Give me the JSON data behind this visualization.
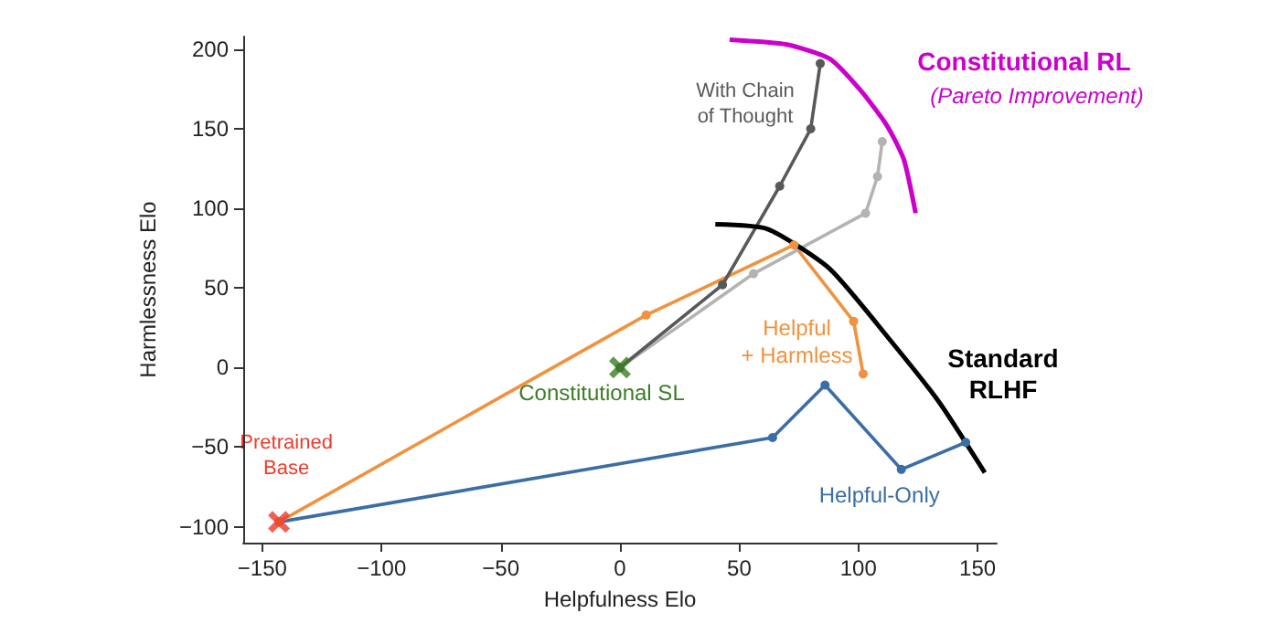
{
  "chart_data": {
    "type": "line",
    "xlabel": "Helpfulness Elo",
    "ylabel": "Harmlessness Elo",
    "xlim": [
      -158,
      158
    ],
    "ylim": [
      -110,
      208
    ],
    "xticks": [
      -150,
      -100,
      -50,
      0,
      50,
      100,
      150
    ],
    "yticks": [
      -100,
      -50,
      0,
      50,
      100,
      150,
      200
    ],
    "grid": false,
    "annotations": [
      "(Pareto Improvement)"
    ],
    "series": [
      {
        "name": "Helpful-Only",
        "color": "#3a6ea5",
        "marker": "circle",
        "x": [
          -143,
          64,
          86,
          118,
          145
        ],
        "values": [
          -97,
          -44,
          -11,
          -64,
          -47
        ]
      },
      {
        "name": "Helpful\n+ Harmless",
        "color": "#f0923e",
        "marker": "circle",
        "x": [
          -143,
          11,
          73,
          98,
          102
        ],
        "values": [
          -97,
          33,
          77,
          29,
          -4
        ]
      },
      {
        "color": "#b3b3b3",
        "marker": "circle",
        "x": [
          0,
          56,
          103,
          108,
          110
        ],
        "values": [
          0,
          59,
          97,
          120,
          142
        ]
      },
      {
        "name": "With Chain\nof Thought",
        "color": "#595959",
        "marker": "circle",
        "x": [
          0,
          43,
          67,
          80,
          84
        ],
        "values": [
          0,
          52,
          114,
          150,
          191
        ]
      },
      {
        "name": "Standard\nRLHF",
        "color": "#000000",
        "marker": "none",
        "x": [
          40,
          62,
          88,
          114,
          134,
          153
        ],
        "values": [
          90,
          87,
          62,
          16,
          -22,
          -66
        ]
      },
      {
        "name": "Constitutional RL",
        "color": "#cc00cc",
        "marker": "none",
        "x": [
          46,
          70,
          88,
          101,
          112,
          119,
          124
        ],
        "values": [
          206,
          203,
          194,
          174,
          152,
          131,
          97
        ]
      },
      {
        "name": "Pretrained\nBase",
        "type": "scatter",
        "color": "#ee3a2a",
        "marker": "cross",
        "x": [
          -143
        ],
        "values": [
          -97
        ]
      },
      {
        "name": "Constitutional SL",
        "type": "scatter",
        "color": "#3b7d23",
        "marker": "cross",
        "x": [
          0
        ],
        "values": [
          0
        ]
      }
    ]
  }
}
